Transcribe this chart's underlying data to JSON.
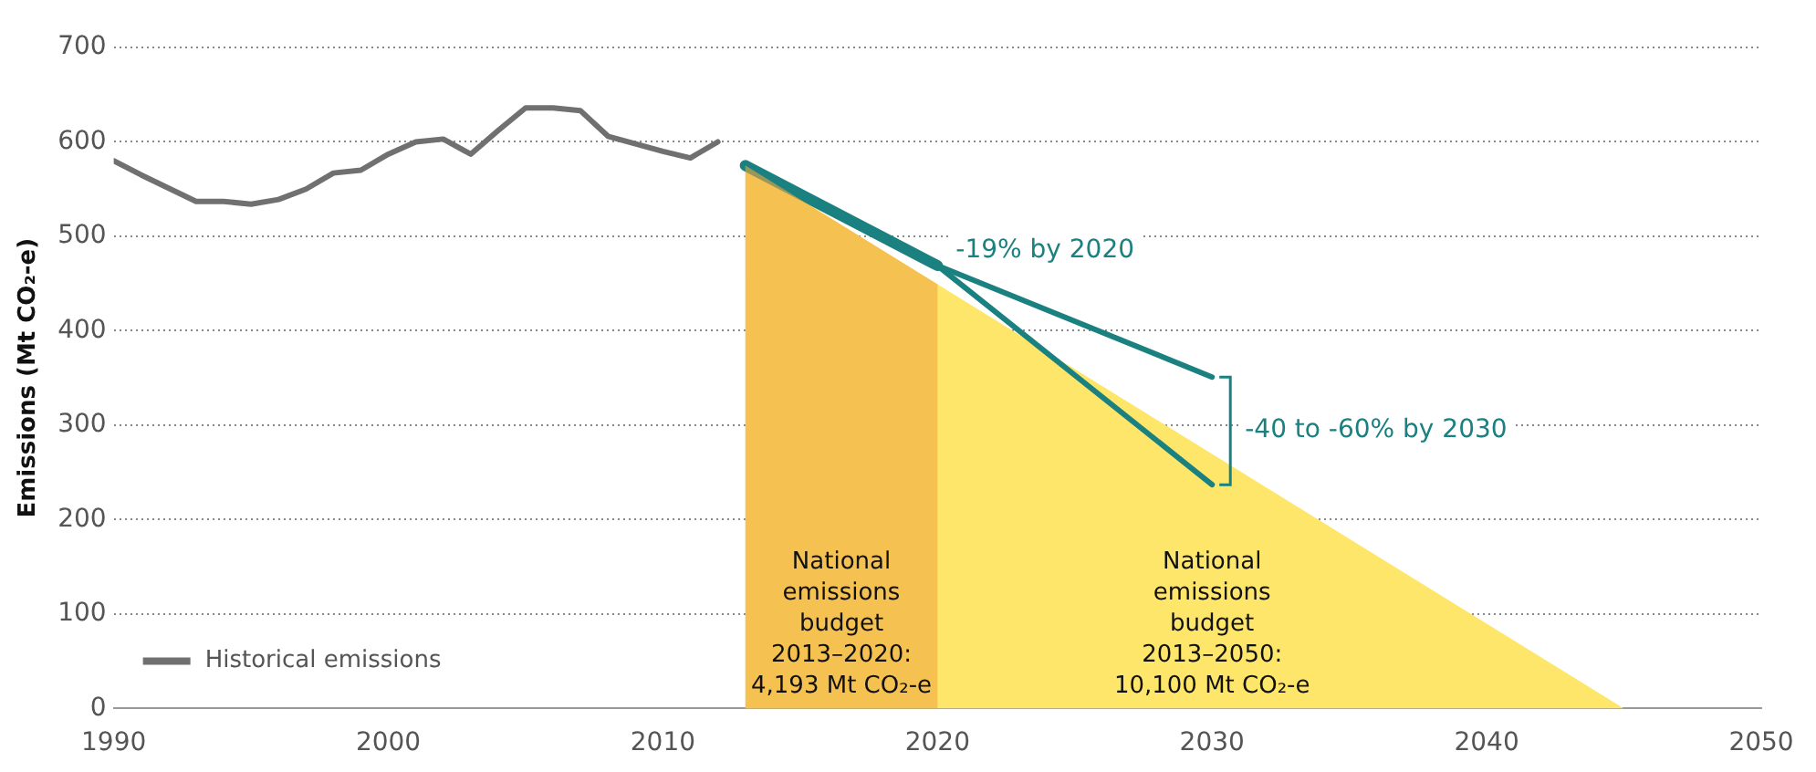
{
  "chart_data": {
    "type": "line",
    "ylabel": "Emissions (Mt CO₂-e)",
    "xlim": [
      1990,
      2050
    ],
    "xticks": [
      1990,
      2000,
      2010,
      2020,
      2030,
      2040,
      2050
    ],
    "ylim": [
      0,
      700
    ],
    "yticks": [
      0,
      100,
      200,
      300,
      400,
      500,
      600,
      700
    ],
    "grid": "y",
    "legend": "bottom left",
    "marker": "none",
    "line_style": "solid",
    "series": [
      {
        "name": "Historical emissions",
        "color": "#707070",
        "x": [
          1990,
          1991,
          1992,
          1993,
          1994,
          1995,
          1996,
          1997,
          1998,
          1999,
          2000,
          2001,
          2002,
          2003,
          2004,
          2005,
          2006,
          2007,
          2008,
          2009,
          2010,
          2011,
          2012
        ],
        "values": [
          580,
          565,
          551,
          537,
          537,
          534,
          539,
          550,
          567,
          570,
          587,
          600,
          603,
          587,
          612,
          636,
          636,
          633,
          606,
          598,
          590,
          583,
          600
        ]
      },
      {
        "type": "area",
        "color": "#fde66a",
        "x": [
          2013,
          2045
        ],
        "values": [
          575,
          0
        ]
      },
      {
        "color": "#1a8080",
        "x": [
          2013,
          2020
        ],
        "values": [
          575,
          469
        ]
      },
      {
        "color": "#1a8080",
        "x": [
          2020,
          2030
        ],
        "values": [
          469,
          351
        ]
      },
      {
        "color": "#1a8080",
        "x": [
          2020,
          2030
        ],
        "values": [
          469,
          237
        ]
      }
    ],
    "bands": [
      {
        "axis": "x",
        "from": 2013,
        "to": 2020,
        "color": "#f0a840"
      }
    ],
    "annotations": [
      {
        "text": "-19% by 2020",
        "x": 2020,
        "y": 469
      },
      "-40 to -60% by 2030",
      "National emissions budget 2013–2020: 4,193 Mt CO₂-e",
      "National emissions budget 2013–2050: 10,100 Mt CO₂-e"
    ]
  }
}
